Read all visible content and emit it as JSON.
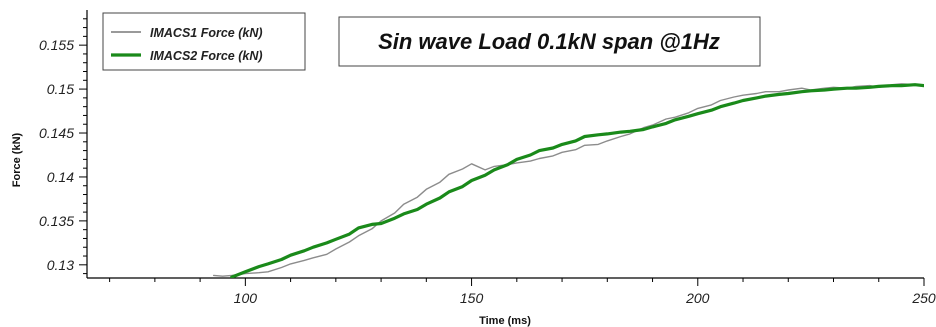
{
  "chart_data": {
    "type": "line",
    "title": "Sin wave Load 0.1kN span @1Hz",
    "xlabel": "Time (ms)",
    "ylabel": "Force (kN)",
    "xlim": [
      65,
      250
    ],
    "ylim": [
      0.1285,
      0.159
    ],
    "x_ticks": [
      100,
      150,
      200,
      250
    ],
    "y_ticks": [
      0.13,
      0.135,
      0.14,
      0.145,
      0.15,
      0.155
    ],
    "y_tick_labels": [
      "0.13",
      "0.135",
      "0.14",
      "0.145",
      "0.15",
      "0.155"
    ],
    "grid": false,
    "legend_position": "top-left",
    "series": [
      {
        "name": "IMACS1 Force (kN)",
        "color": "#8c8c8c",
        "x": [
          93,
          95,
          97,
          100,
          103,
          105,
          108,
          110,
          113,
          115,
          118,
          120,
          123,
          125,
          128,
          130,
          133,
          135,
          138,
          140,
          143,
          145,
          148,
          150,
          153,
          155,
          158,
          160,
          163,
          165,
          168,
          170,
          173,
          175,
          178,
          180,
          183,
          185,
          188,
          190,
          193,
          195,
          198,
          200,
          203,
          205,
          208,
          210,
          213,
          215,
          218,
          220,
          223,
          225,
          228,
          230,
          233,
          235,
          238,
          240,
          243,
          245,
          248,
          250
        ],
        "y": [
          0.1288,
          0.1287,
          0.1288,
          0.129,
          0.1291,
          0.1292,
          0.1297,
          0.1301,
          0.1305,
          0.1308,
          0.1312,
          0.1318,
          0.1326,
          0.1333,
          0.1341,
          0.135,
          0.1359,
          0.1369,
          0.1377,
          0.1386,
          0.1394,
          0.1403,
          0.1409,
          0.1415,
          0.1408,
          0.1412,
          0.1414,
          0.1416,
          0.1418,
          0.1421,
          0.1424,
          0.1428,
          0.1431,
          0.1436,
          0.1437,
          0.1441,
          0.1446,
          0.1449,
          0.1456,
          0.1459,
          0.1466,
          0.1468,
          0.1473,
          0.1478,
          0.1482,
          0.1487,
          0.1491,
          0.1493,
          0.1495,
          0.1497,
          0.1497,
          0.1499,
          0.1501,
          0.1499,
          0.1501,
          0.1502,
          0.1501,
          0.1503,
          0.1504,
          0.1502,
          0.1505,
          0.1506,
          0.1505,
          0.1505
        ]
      },
      {
        "name": "IMACS2 Force (kN)",
        "color": "#1a8a1a",
        "x": [
          97,
          100,
          103,
          105,
          108,
          110,
          113,
          115,
          118,
          120,
          123,
          125,
          128,
          130,
          133,
          135,
          138,
          140,
          143,
          145,
          148,
          150,
          153,
          155,
          158,
          160,
          163,
          165,
          168,
          170,
          173,
          175,
          178,
          180,
          183,
          185,
          188,
          190,
          193,
          195,
          198,
          200,
          203,
          205,
          208,
          210,
          213,
          215,
          218,
          220,
          223,
          225,
          228,
          230,
          233,
          235,
          238,
          240,
          243,
          245,
          248,
          250
        ],
        "y": [
          0.1286,
          0.1292,
          0.1298,
          0.1301,
          0.1306,
          0.1311,
          0.1316,
          0.132,
          0.1325,
          0.1329,
          0.1335,
          0.1342,
          0.1346,
          0.1347,
          0.1353,
          0.1358,
          0.1363,
          0.1369,
          0.1376,
          0.1383,
          0.1389,
          0.1396,
          0.1402,
          0.1408,
          0.1414,
          0.142,
          0.1425,
          0.143,
          0.1433,
          0.1437,
          0.1441,
          0.1446,
          0.1448,
          0.1449,
          0.1451,
          0.1452,
          0.1454,
          0.1457,
          0.1461,
          0.1465,
          0.1469,
          0.1472,
          0.1476,
          0.148,
          0.1484,
          0.1487,
          0.149,
          0.1492,
          0.1494,
          0.1495,
          0.1497,
          0.1498,
          0.1499,
          0.15,
          0.1501,
          0.1501,
          0.1502,
          0.1503,
          0.1504,
          0.1504,
          0.1505,
          0.1504
        ]
      }
    ]
  }
}
